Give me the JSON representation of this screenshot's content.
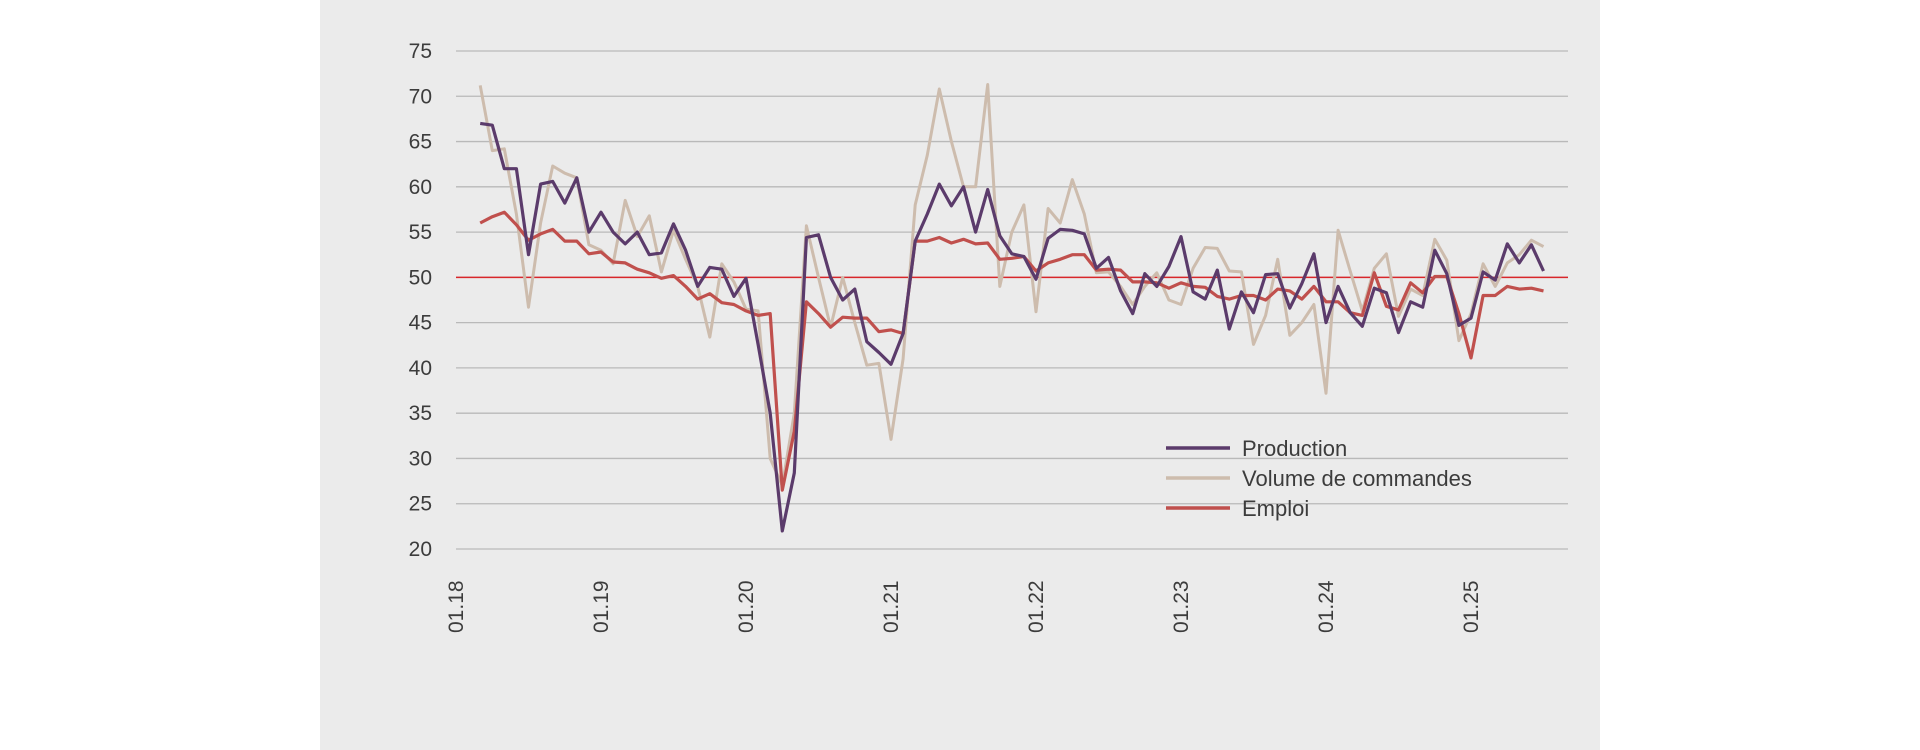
{
  "chart_data": {
    "type": "line",
    "title": "",
    "xlabel": "",
    "ylabel": "",
    "ylim": [
      20,
      75
    ],
    "y_ticks": [
      20,
      25,
      30,
      35,
      40,
      45,
      50,
      55,
      60,
      65,
      70,
      75
    ],
    "x_tick_labels": [
      "01.18",
      "01.19",
      "01.20",
      "01.21",
      "01.22",
      "01.23",
      "01.24",
      "01.25"
    ],
    "reference_line": {
      "value": 50,
      "color": "#d9262a"
    },
    "grid": true,
    "legend": "center-right",
    "x_start": "03.18",
    "series": [
      {
        "name": "Production",
        "color": "#5b3b6b",
        "values": [
          67.0,
          66.8,
          62.0,
          62.0,
          52.5,
          60.3,
          60.6,
          58.2,
          61.0,
          55.0,
          57.2,
          55.0,
          53.7,
          55.0,
          52.5,
          52.7,
          55.9,
          53.0,
          49.0,
          51.1,
          50.9,
          47.9,
          49.9,
          42.6,
          35.0,
          22.0,
          28.4,
          54.4,
          54.7,
          50.0,
          47.5,
          48.7,
          42.9,
          41.7,
          40.4,
          43.8,
          54.0,
          57.0,
          60.3,
          57.9,
          60.0,
          55.0,
          59.7,
          54.6,
          52.6,
          52.3,
          49.8,
          54.3,
          55.3,
          55.2,
          54.8,
          51.0,
          52.2,
          48.5,
          46.0,
          50.4,
          49.0,
          51.2,
          54.5,
          48.4,
          47.6,
          50.8,
          44.3,
          48.4,
          46.1,
          50.3,
          50.4,
          46.6,
          49.3,
          52.6,
          45.0,
          49.0,
          46.1,
          44.6,
          48.8,
          48.3,
          43.9,
          47.3,
          46.7,
          53.0,
          50.4,
          44.7,
          45.5,
          50.6,
          49.7,
          53.7,
          51.6,
          53.6,
          50.7
        ]
      },
      {
        "name": "Volume de commandes",
        "color": "#cdbcad",
        "values": [
          71.2,
          64.0,
          64.2,
          57.0,
          46.7,
          56.0,
          62.3,
          61.5,
          61.0,
          53.6,
          53.0,
          51.5,
          58.5,
          54.5,
          56.8,
          50.6,
          55.2,
          52.0,
          49.0,
          43.4,
          51.5,
          49.5,
          46.5,
          46.3,
          30.0,
          27.0,
          35.0,
          55.7,
          50.0,
          44.5,
          50.0,
          45.0,
          40.3,
          40.5,
          32.1,
          41.0,
          58.0,
          63.5,
          70.8,
          65.0,
          60.0,
          60.0,
          71.3,
          49.0,
          55.0,
          58.0,
          46.2,
          57.6,
          56.0,
          60.8,
          57.0,
          50.5,
          50.6,
          49.0,
          47.0,
          49.0,
          50.5,
          47.5,
          47.0,
          51.0,
          53.3,
          53.2,
          50.7,
          50.6,
          42.6,
          45.8,
          52.0,
          43.6,
          45.0,
          47.0,
          37.2,
          55.2,
          50.7,
          46.3,
          51.0,
          52.6,
          45.7,
          48.7,
          48.0,
          54.2,
          51.9,
          43.0,
          46.0,
          51.5,
          49.0,
          51.6,
          52.5,
          54.1,
          53.4
        ]
      },
      {
        "name": "Emploi",
        "color": "#c0504d",
        "values": [
          56.0,
          56.7,
          57.2,
          55.8,
          54.1,
          54.8,
          55.3,
          54.0,
          54.0,
          52.6,
          52.8,
          51.7,
          51.6,
          50.9,
          50.5,
          49.9,
          50.2,
          49.0,
          47.6,
          48.2,
          47.2,
          47.0,
          46.3,
          45.8,
          46.0,
          26.5,
          33.0,
          47.3,
          46.0,
          44.5,
          45.6,
          45.5,
          45.5,
          44.0,
          44.2,
          43.8,
          54.0,
          54.0,
          54.4,
          53.8,
          54.2,
          53.7,
          53.8,
          52.0,
          52.1,
          52.3,
          50.7,
          51.6,
          52.0,
          52.5,
          52.5,
          50.8,
          50.9,
          50.8,
          49.5,
          49.5,
          49.4,
          48.8,
          49.4,
          49.0,
          48.9,
          47.9,
          47.6,
          48.0,
          48.0,
          47.5,
          48.7,
          48.5,
          47.6,
          49.0,
          47.3,
          47.3,
          46.1,
          45.8,
          50.5,
          46.8,
          46.4,
          49.4,
          48.3,
          50.1,
          50.1,
          46.0,
          41.1,
          48.0,
          48.0,
          49.0,
          48.7,
          48.8,
          48.5
        ]
      }
    ]
  }
}
